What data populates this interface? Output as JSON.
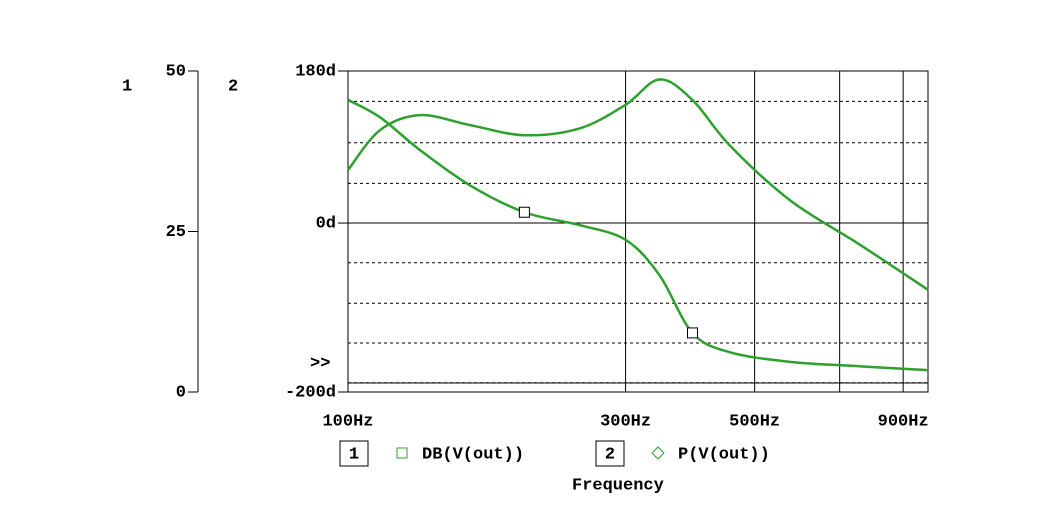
{
  "chart_data": {
    "type": "line",
    "xlabel": "Frequency",
    "y_axis_name": "1",
    "y2_axis_name": "2",
    "overflow_marker": ">>",
    "log_x": true,
    "x": [
      100,
      113.5,
      132.9,
      162,
      201,
      250,
      300,
      343,
      391,
      453,
      575,
      760,
      993
    ],
    "xlim": [
      100,
      993
    ],
    "xticks": [
      {
        "value": 100,
        "label": "100Hz"
      },
      {
        "value": 300,
        "label": "300Hz"
      },
      {
        "value": 500,
        "label": "500Hz"
      },
      {
        "value": 700,
        "label": null
      },
      {
        "value": 900,
        "label": "900Hz"
      }
    ],
    "ylim": [
      0,
      50
    ],
    "yticks": [
      0,
      25,
      50
    ],
    "y2lim": [
      -200,
      180
    ],
    "y2ticks": [
      {
        "value": -200,
        "label": "-200d"
      },
      {
        "value": 0,
        "label": "0d"
      },
      {
        "value": 180,
        "label": "180d"
      }
    ],
    "y2grid": [
      -189,
      -142,
      -95,
      -47,
      47,
      95,
      144
    ],
    "series": [
      {
        "name": "DB(V(out))",
        "color": "#2ea02e",
        "marker": "square",
        "legend_index": "1",
        "values": [
          45.5,
          42.8,
          37.7,
          32.2,
          28.0,
          26.0,
          23.7,
          18.2,
          9.2,
          6.2,
          4.7,
          4.0,
          3.4
        ]
      },
      {
        "name": "P(V(out))",
        "color": "#2ea02e",
        "marker": "diamond",
        "legend_index": "2",
        "axis": "y2",
        "values": [
          62.7,
          110,
          127.8,
          116,
          104,
          112,
          140,
          170,
          145.6,
          92,
          27,
          -26,
          -79
        ]
      }
    ]
  }
}
